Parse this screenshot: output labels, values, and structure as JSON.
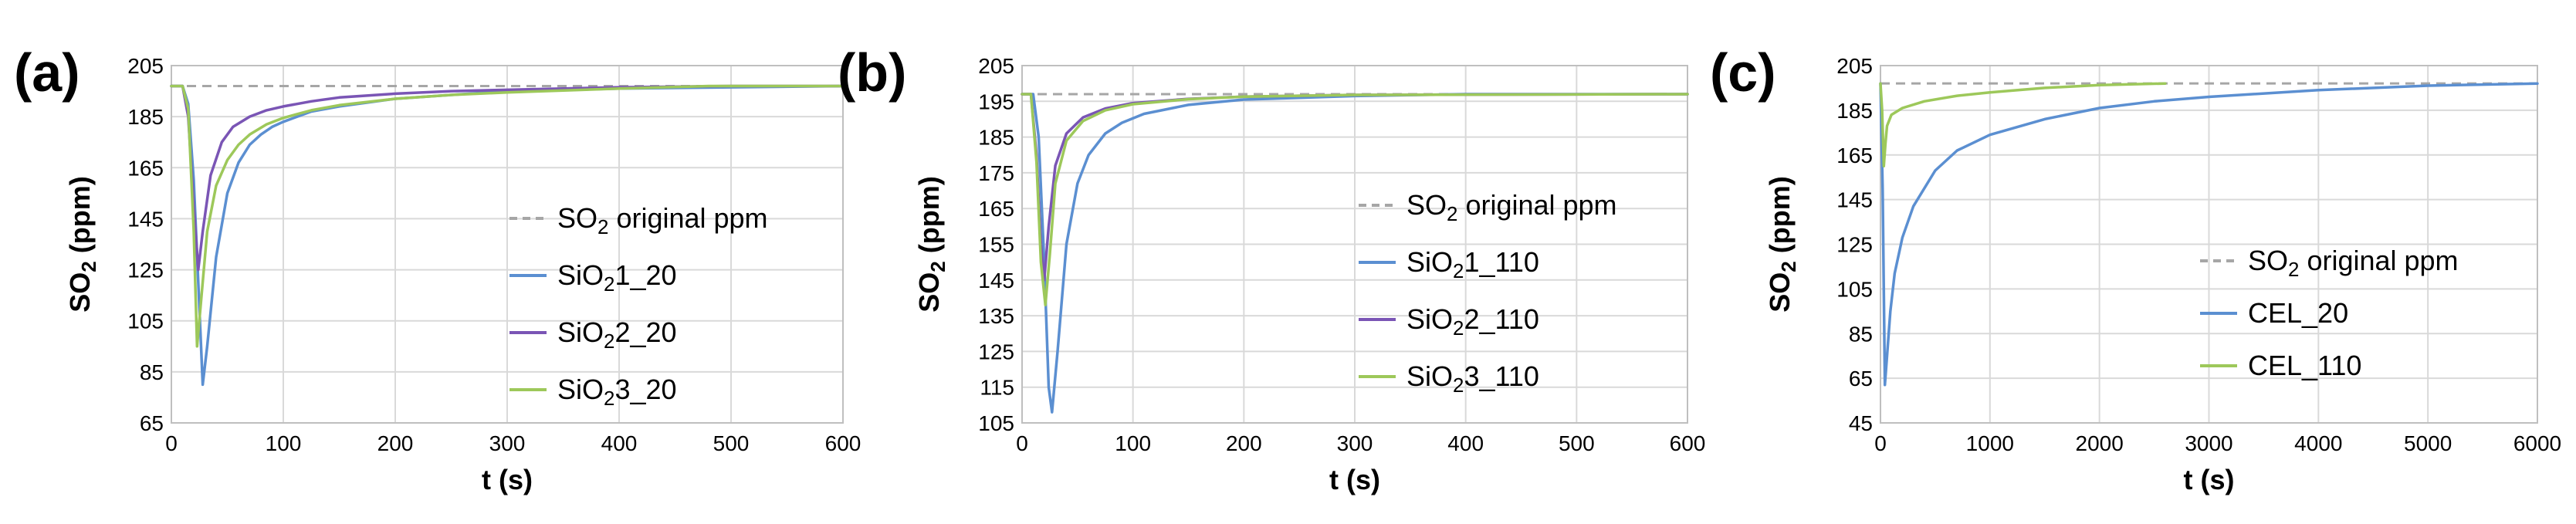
{
  "chart_data": [
    {
      "type": "line",
      "panel_label": "(a)",
      "xlabel": "t (s)",
      "ylabel": "SO2 (ppm)",
      "ylabel_main": "SO",
      "ylabel_sub": "2",
      "ylabel_tail": " (ppm)",
      "xlim": [
        0,
        600
      ],
      "ylim": [
        65,
        205
      ],
      "xticks": [
        0,
        100,
        200,
        300,
        400,
        500,
        600
      ],
      "yticks": [
        65,
        85,
        105,
        125,
        145,
        165,
        185,
        205
      ],
      "grid": true,
      "legend_position": "center-right",
      "baseline": {
        "name": "SO2 original ppm",
        "name_main": "SO",
        "name_sub": "2",
        "name_tail": " original ppm",
        "value": 197,
        "color": "#a6a6a6"
      },
      "series": [
        {
          "name": "SiO21_20",
          "name_main": "SiO",
          "name_sub": "2",
          "name_tail": "1_20",
          "color": "#5b8fd1",
          "x": [
            0,
            10,
            15,
            20,
            25,
            28,
            32,
            40,
            50,
            60,
            70,
            80,
            90,
            100,
            125,
            150,
            200,
            250,
            300,
            400,
            500,
            600
          ],
          "y": [
            197,
            197,
            190,
            160,
            110,
            80,
            95,
            130,
            155,
            167,
            174,
            178,
            181,
            183,
            187,
            189,
            192,
            193.5,
            195,
            196,
            196.5,
            197
          ]
        },
        {
          "name": "SiO22_20",
          "name_main": "SiO",
          "name_sub": "2",
          "name_tail": "2_20",
          "color": "#7a55b5",
          "x": [
            0,
            10,
            15,
            20,
            24,
            28,
            35,
            45,
            55,
            70,
            85,
            100,
            125,
            150,
            200,
            250,
            300,
            400,
            500,
            600
          ],
          "y": [
            197,
            197,
            185,
            150,
            125,
            140,
            162,
            175,
            181,
            185,
            187.5,
            189,
            191,
            192.5,
            194,
            195,
            195.5,
            196.5,
            197,
            197
          ]
        },
        {
          "name": "SiO23_20",
          "name_main": "SiO",
          "name_sub": "2",
          "name_tail": "3_20",
          "color": "#9dc85a",
          "x": [
            0,
            10,
            15,
            20,
            23,
            27,
            32,
            40,
            50,
            60,
            70,
            85,
            100,
            125,
            150,
            200,
            250,
            300,
            400,
            480,
            600
          ],
          "y": [
            197,
            197,
            188,
            140,
            95,
            115,
            140,
            158,
            168,
            174,
            178,
            182,
            184.5,
            187.5,
            189.5,
            192,
            193.5,
            194.5,
            196,
            197,
            197
          ]
        }
      ]
    },
    {
      "type": "line",
      "panel_label": "(b)",
      "xlabel": "t (s)",
      "ylabel": "SO2 (ppm)",
      "ylabel_main": "SO",
      "ylabel_sub": "2",
      "ylabel_tail": " (ppm)",
      "xlim": [
        0,
        600
      ],
      "ylim": [
        105,
        205
      ],
      "xticks": [
        0,
        100,
        200,
        300,
        400,
        500,
        600
      ],
      "yticks": [
        105,
        115,
        125,
        135,
        145,
        155,
        165,
        175,
        185,
        195,
        205
      ],
      "grid": true,
      "legend_position": "center-right",
      "baseline": {
        "name": "SO2 original ppm",
        "name_main": "SO",
        "name_sub": "2",
        "name_tail": " original ppm",
        "value": 197,
        "color": "#a6a6a6"
      },
      "series": [
        {
          "name": "SiO21_110",
          "name_main": "SiO",
          "name_sub": "2",
          "name_tail": "1_110",
          "color": "#5b8fd1",
          "x": [
            0,
            10,
            15,
            20,
            24,
            27,
            32,
            40,
            50,
            60,
            75,
            90,
            110,
            150,
            200,
            300,
            400,
            600
          ],
          "y": [
            197,
            197,
            185,
            150,
            115,
            108,
            125,
            155,
            172,
            180,
            186,
            189,
            191.5,
            194,
            195.5,
            196.5,
            197,
            197
          ]
        },
        {
          "name": "SiO22_110",
          "name_main": "SiO",
          "name_sub": "2",
          "name_tail": "2_110",
          "color": "#7a55b5",
          "x": [
            0,
            8,
            13,
            17,
            20,
            24,
            30,
            40,
            55,
            75,
            100,
            150,
            200,
            300,
            600
          ],
          "y": [
            197,
            197,
            180,
            155,
            145,
            160,
            177,
            186,
            190.5,
            193,
            194.5,
            195.7,
            196.3,
            196.8,
            197
          ]
        },
        {
          "name": "SiO23_110",
          "name_main": "SiO",
          "name_sub": "2",
          "name_tail": "3_110",
          "color": "#9dc85a",
          "x": [
            0,
            8,
            13,
            17,
            21,
            25,
            30,
            40,
            55,
            75,
            100,
            150,
            200,
            300,
            600
          ],
          "y": [
            197,
            197,
            178,
            150,
            138,
            152,
            172,
            184,
            189.5,
            192.5,
            194.2,
            195.6,
            196.3,
            196.8,
            197
          ]
        }
      ]
    },
    {
      "type": "line",
      "panel_label": "(c)",
      "xlabel": "t (s)",
      "ylabel": "SO2 (ppm)",
      "ylabel_main": "SO",
      "ylabel_sub": "2",
      "ylabel_tail": " (ppm)",
      "xlim": [
        0,
        6000
      ],
      "ylim": [
        45,
        205
      ],
      "xticks": [
        0,
        1000,
        2000,
        3000,
        4000,
        5000,
        6000
      ],
      "yticks": [
        45,
        65,
        85,
        105,
        125,
        145,
        165,
        185,
        205
      ],
      "grid": true,
      "legend_position": "bottom-right",
      "baseline": {
        "name": "SO2 original ppm",
        "name_main": "SO",
        "name_sub": "2",
        "name_tail": " original ppm",
        "value": 197,
        "color": "#a6a6a6"
      },
      "series": [
        {
          "name": "CEL_20",
          "name_main": "CEL_20",
          "name_sub": "",
          "name_tail": "",
          "color": "#5b8fd1",
          "x": [
            0,
            20,
            40,
            60,
            90,
            130,
            200,
            300,
            500,
            700,
            1000,
            1500,
            2000,
            2500,
            3000,
            4000,
            5000,
            6000
          ],
          "y": [
            197,
            150,
            62,
            75,
            95,
            112,
            128,
            142,
            158,
            167,
            174,
            181,
            186,
            189,
            191,
            194,
            196,
            197
          ]
        },
        {
          "name": "CEL_110",
          "name_main": "CEL_110",
          "name_sub": "",
          "name_tail": "",
          "color": "#9dc85a",
          "x": [
            0,
            15,
            30,
            45,
            60,
            100,
            200,
            400,
            700,
            1000,
            1500,
            2000,
            2600
          ],
          "y": [
            197,
            185,
            160,
            170,
            178,
            183,
            186,
            189,
            191.5,
            193,
            195,
            196.3,
            197
          ]
        }
      ]
    }
  ]
}
